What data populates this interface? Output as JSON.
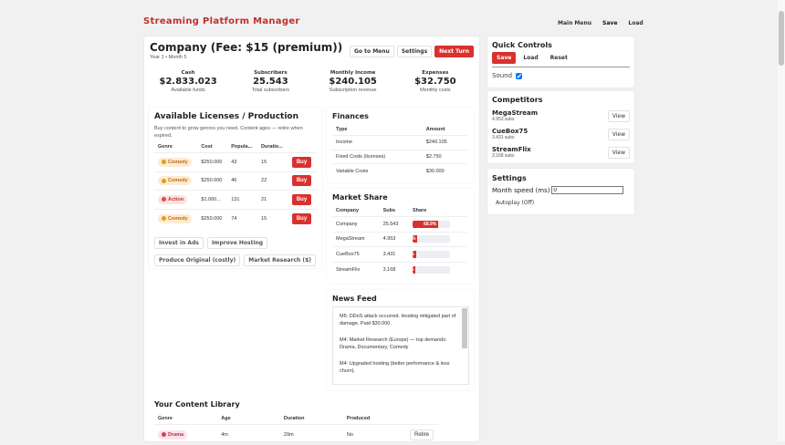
{
  "header": {
    "title": "Streaming Platform Manager",
    "nav": [
      "Main Menu",
      "Save",
      "Load"
    ]
  },
  "company": {
    "title": "Company (Fee: $15 (premium))",
    "subtitle": "Year 1 • Month 5",
    "buttons": [
      "Go to Menu",
      "Settings",
      "Next Turn"
    ],
    "stats": [
      {
        "label": "Cash",
        "value": "$2.833.023",
        "note": "Available funds"
      },
      {
        "label": "Subscribers",
        "value": "25.543",
        "note": "Total subscribers"
      },
      {
        "label": "Monthly Income",
        "value": "$240.105",
        "note": "Subscription revenue"
      },
      {
        "label": "Expenses",
        "value": "$32.750",
        "note": "Monthly costs"
      }
    ]
  },
  "licenses": {
    "title": "Available Licenses / Production",
    "description": "Buy content to grow genres you need. Content ages — retire when expired.",
    "columns": [
      "Genre",
      "Cost",
      "Popula...",
      "Duratio..."
    ],
    "rows": [
      [
        "Comedy",
        "$250.000",
        43,
        15
      ],
      [
        "Comedy",
        "$250.000",
        46,
        22
      ],
      [
        "Action",
        "$1.000...",
        131,
        21
      ],
      [
        "Comedy",
        "$250.000",
        74,
        15
      ]
    ],
    "buy": "Buy",
    "actions": [
      "Invest in Ads",
      "Improve Hosting",
      "Produce Original (costly)",
      "Market Research ($)"
    ]
  },
  "finances": {
    "title": "Finances",
    "columns": [
      "Type",
      "Amount"
    ],
    "rows": [
      [
        "Income",
        "$240.105"
      ],
      [
        "Fixed Costs (licenses)",
        "$2.750"
      ],
      [
        "Variable Costs",
        "$30.000"
      ]
    ]
  },
  "market_share": {
    "title": "Market Share",
    "columns": [
      "Company",
      "Subs",
      "Share"
    ],
    "rows": [
      {
        "company": "Company",
        "subs": "25.543",
        "share": {
          "value": 68.9,
          "label": "68.9%"
        }
      },
      {
        "company": "MegaStream",
        "subs": "4.953",
        "share": {
          "value": 13.4,
          "label": "13.4%"
        }
      },
      {
        "company": "CueBox75",
        "subs": "3.431",
        "share": {
          "value": 9.2,
          "label": "9.2%"
        }
      },
      {
        "company": "StreamFlix",
        "subs": "3.168",
        "share": {
          "value": 8.5,
          "label": "8.5%"
        }
      }
    ]
  },
  "news": {
    "title": "News Feed",
    "items": [
      "M5: DDoS attack occurred. Hosting mitigated part of damage. Paid $30.000.",
      "M4: Market Research (Europe) — top demands: Drama, Documentary, Comedy",
      "M4: Upgraded hosting (better performance & less churn)."
    ]
  },
  "library": {
    "title": "Your Content Library",
    "columns": [
      "Genre",
      "Age",
      "Duration",
      "Produced"
    ],
    "rows": [
      {
        "genre": "Drama",
        "age": "4m",
        "duration": "29m",
        "produced": "No",
        "action": "Retire"
      }
    ]
  },
  "quick_controls": {
    "title": "Quick Controls",
    "buttons": [
      "Save",
      "Load",
      "Reset"
    ],
    "sound": "Sound"
  },
  "competitors": {
    "title": "Competitors",
    "items": [
      {
        "name": "MegaStream",
        "subs": "4.953 subs",
        "action": "View"
      },
      {
        "name": "CueBox75",
        "subs": "3.431 subs",
        "action": "View"
      },
      {
        "name": "StreamFlix",
        "subs": "3.168 subs",
        "action": "View"
      }
    ]
  },
  "settings": {
    "title": "Settings",
    "month_speed": "Month speed (ms)",
    "month_speed_value": "0",
    "autoplay": "Autoplay (Off)"
  }
}
